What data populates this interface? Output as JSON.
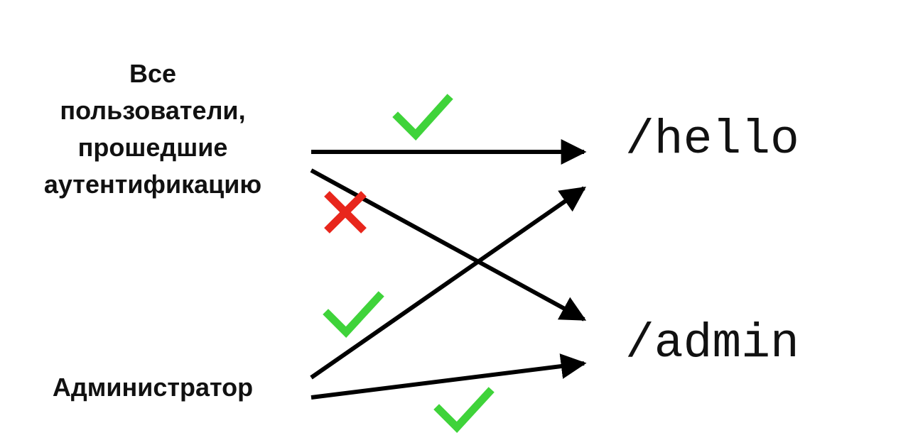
{
  "roles": {
    "all_users": "Все\nпользователи,\nпрошедшие\nаутентификацию",
    "admin": "Администратор"
  },
  "endpoints": {
    "hello": "/hello",
    "admin": "/admin"
  },
  "colors": {
    "allowed": "#3fd33a",
    "denied": "#e8261c",
    "arrow": "#000000",
    "text": "#111111",
    "background": "#ffffff"
  },
  "icons": {
    "allowed": "check-icon",
    "denied": "cross-icon"
  }
}
